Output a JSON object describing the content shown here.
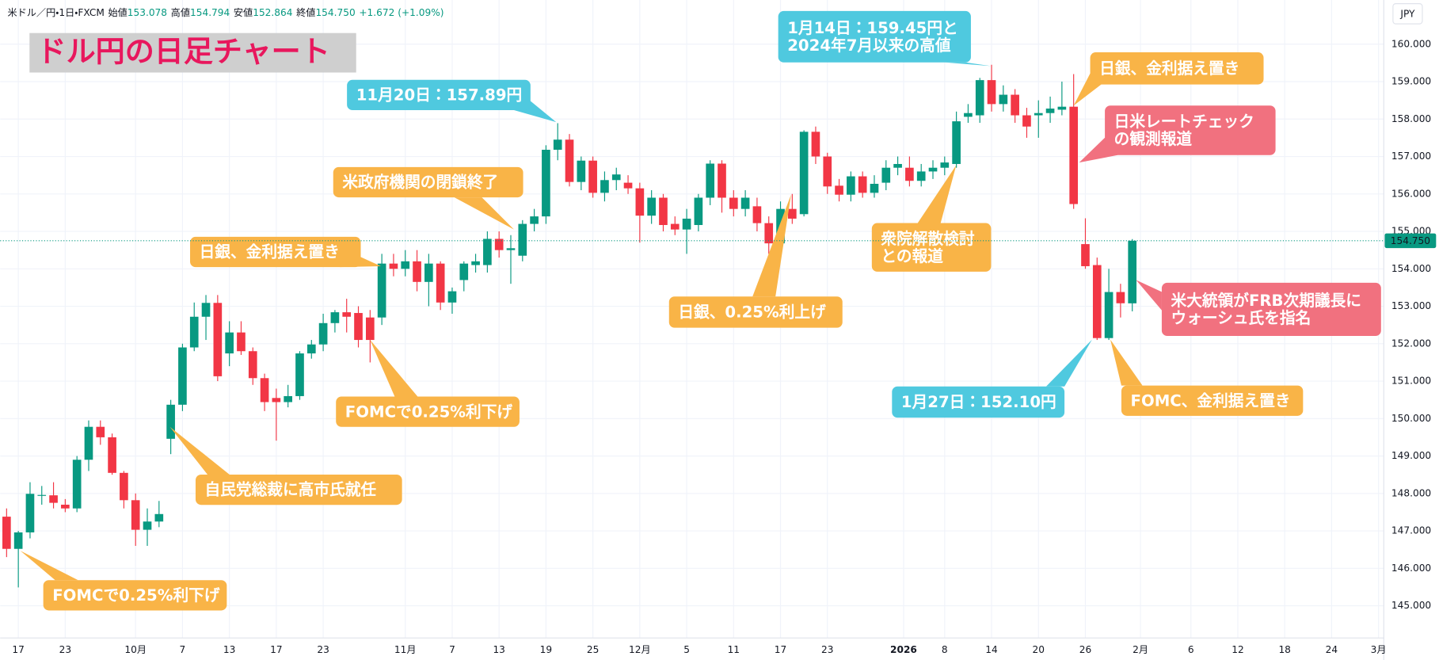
{
  "chart_data": {
    "type": "candlestick",
    "title": "ドル円の日足チャート",
    "currency": "JPY",
    "legend": {
      "symbol": "米ドル／円・1日・FXCM",
      "items": [
        {
          "label": "始値",
          "value": "153.078"
        },
        {
          "label": "高値",
          "value": "154.794"
        },
        {
          "label": "安値",
          "value": "152.864"
        },
        {
          "label": "終値",
          "value": "154.750"
        }
      ],
      "change": "+1.672 (+1.09%)"
    },
    "up_color": "#089981",
    "down_color": "#f23645",
    "open": [
      147.38,
      146.52,
      146.96,
      147.94,
      147.95,
      147.7,
      147.6,
      148.9,
      149.78,
      149.5,
      148.55,
      147.82,
      147.03,
      147.25,
      149.46,
      150.37,
      151.9,
      152.72,
      153.09,
      151.74,
      152.3,
      151.8,
      151.08,
      150.55,
      150.44,
      150.6,
      151.74,
      151.98,
      152.55,
      152.84,
      152.82,
      152.7,
      152.7,
      154.14,
      154.0,
      154.2,
      153.65,
      154.14,
      153.1,
      153.7,
      154.1,
      154.1,
      154.8,
      154.5,
      154.35,
      155.2,
      155.4,
      157.18,
      157.45,
      156.32,
      156.89,
      156.03,
      156.37,
      156.3,
      156.15,
      155.42,
      155.9,
      155.2,
      155.05,
      155.17,
      155.9,
      156.81,
      155.9,
      155.6,
      155.67,
      155.22,
      154.68,
      155.6,
      155.46,
      157.66,
      157.0,
      156.22,
      155.98,
      156.47,
      156.03,
      156.3,
      156.7,
      156.7,
      156.35,
      156.6,
      156.7,
      156.8,
      158.06,
      158.1,
      159.04,
      158.4,
      158.65,
      158.1,
      158.1,
      158.16,
      158.25,
      158.33,
      154.66,
      154.1,
      152.15,
      153.38,
      153.078
    ],
    "high": [
      147.6,
      147.0,
      148.3,
      148.2,
      148.3,
      147.85,
      149.0,
      149.95,
      149.95,
      149.6,
      148.6,
      148.0,
      147.6,
      147.8,
      150.5,
      152.0,
      153.1,
      153.3,
      153.3,
      152.6,
      152.6,
      151.9,
      151.2,
      150.8,
      150.9,
      151.8,
      152.1,
      152.8,
      152.9,
      153.2,
      153.0,
      152.9,
      154.4,
      154.4,
      154.5,
      154.5,
      154.4,
      154.2,
      153.5,
      154.2,
      154.4,
      155.0,
      155.0,
      154.9,
      155.3,
      155.6,
      157.3,
      157.89,
      157.6,
      157.0,
      157.0,
      156.6,
      156.7,
      156.5,
      156.3,
      156.1,
      156.0,
      155.4,
      155.6,
      156.0,
      156.9,
      156.9,
      156.1,
      156.1,
      155.9,
      155.4,
      155.8,
      156.0,
      157.7,
      157.8,
      157.1,
      156.4,
      156.6,
      156.6,
      156.5,
      156.9,
      157.0,
      157.0,
      156.8,
      156.9,
      157.0,
      158.2,
      158.4,
      159.1,
      159.45,
      158.9,
      158.8,
      158.3,
      158.5,
      158.6,
      159.0,
      159.2,
      155.35,
      154.3,
      154.0,
      153.6,
      154.794
    ],
    "low": [
      146.3,
      145.49,
      146.8,
      147.7,
      147.6,
      147.5,
      147.5,
      148.6,
      149.3,
      148.5,
      147.6,
      146.6,
      146.6,
      147.1,
      149.05,
      150.2,
      151.8,
      152.1,
      151.0,
      151.4,
      151.7,
      150.9,
      150.2,
      149.41,
      150.3,
      150.5,
      151.6,
      151.8,
      152.3,
      152.3,
      151.9,
      151.5,
      152.5,
      153.8,
      153.8,
      153.4,
      153.0,
      152.9,
      152.8,
      153.4,
      153.9,
      153.9,
      154.3,
      153.6,
      154.2,
      155.0,
      155.2,
      156.9,
      156.2,
      156.1,
      155.9,
      155.8,
      156.1,
      156.0,
      154.7,
      155.2,
      155.0,
      154.9,
      154.4,
      155.0,
      155.7,
      155.5,
      155.4,
      155.4,
      155.0,
      154.4,
      154.5,
      155.2,
      155.4,
      156.8,
      156.0,
      155.8,
      155.8,
      155.9,
      155.9,
      156.1,
      156.5,
      156.2,
      156.2,
      156.4,
      156.5,
      156.7,
      157.9,
      157.9,
      158.2,
      158.2,
      157.9,
      157.5,
      157.5,
      157.9,
      158.1,
      155.6,
      154.0,
      152.1,
      152.1,
      152.7,
      152.864
    ],
    "close": [
      146.52,
      146.96,
      147.99,
      147.96,
      147.75,
      147.6,
      148.9,
      149.78,
      149.5,
      148.55,
      147.82,
      147.03,
      147.25,
      147.45,
      150.37,
      151.9,
      152.72,
      153.09,
      151.13,
      152.3,
      151.8,
      151.08,
      150.44,
      150.44,
      150.6,
      151.74,
      151.98,
      152.55,
      152.84,
      152.72,
      152.1,
      152.1,
      154.14,
      154.0,
      154.2,
      153.65,
      154.14,
      153.1,
      153.4,
      154.14,
      154.2,
      154.8,
      154.5,
      154.55,
      155.2,
      155.4,
      157.18,
      157.45,
      156.32,
      156.89,
      156.03,
      156.37,
      156.52,
      156.15,
      155.42,
      155.9,
      155.17,
      155.05,
      155.34,
      155.9,
      156.81,
      155.9,
      155.6,
      155.9,
      155.22,
      154.68,
      155.6,
      155.34,
      157.66,
      157.0,
      156.2,
      155.98,
      156.47,
      156.03,
      156.27,
      156.7,
      156.8,
      156.35,
      156.6,
      156.7,
      156.84,
      157.94,
      158.16,
      159.04,
      158.4,
      158.65,
      158.1,
      157.8,
      158.16,
      158.28,
      158.33,
      155.73,
      154.07,
      152.15,
      153.38,
      153.08,
      154.75
    ],
    "xlim": [
      -0.55,
      117.45
    ],
    "xticks": [
      {
        "value": 1,
        "label": "17"
      },
      {
        "value": 5,
        "label": "23"
      },
      {
        "value": 11,
        "label": "10月"
      },
      {
        "value": 15,
        "label": "7"
      },
      {
        "value": 19,
        "label": "13"
      },
      {
        "value": 23,
        "label": "17"
      },
      {
        "value": 27,
        "label": "23"
      },
      {
        "value": 34,
        "label": "11月"
      },
      {
        "value": 38,
        "label": "7"
      },
      {
        "value": 42,
        "label": "13"
      },
      {
        "value": 46,
        "label": "19"
      },
      {
        "value": 50,
        "label": "25"
      },
      {
        "value": 54,
        "label": "12月"
      },
      {
        "value": 58,
        "label": "5"
      },
      {
        "value": 62,
        "label": "11"
      },
      {
        "value": 66,
        "label": "17"
      },
      {
        "value": 70,
        "label": "23"
      },
      {
        "value": 76.5,
        "label": "2026"
      },
      {
        "value": 80,
        "label": "8"
      },
      {
        "value": 84,
        "label": "14"
      },
      {
        "value": 88,
        "label": "20"
      },
      {
        "value": 92,
        "label": "26"
      },
      {
        "value": 96.7,
        "label": "2月"
      },
      {
        "value": 101,
        "label": "6"
      },
      {
        "value": 105,
        "label": "12"
      },
      {
        "value": 109,
        "label": "18"
      },
      {
        "value": 113,
        "label": "24"
      },
      {
        "value": 117,
        "label": "3月"
      }
    ],
    "ylim": [
      144.14,
      161.18
    ],
    "yticks": [
      {
        "value": 145,
        "label": "145.000"
      },
      {
        "value": 146,
        "label": "146.000"
      },
      {
        "value": 147,
        "label": "147.000"
      },
      {
        "value": 148,
        "label": "148.000"
      },
      {
        "value": 149,
        "label": "149.000"
      },
      {
        "value": 150,
        "label": "150.000"
      },
      {
        "value": 151,
        "label": "151.000"
      },
      {
        "value": 152,
        "label": "152.000"
      },
      {
        "value": 153,
        "label": "153.000"
      },
      {
        "value": 154,
        "label": "154.000"
      },
      {
        "value": 155,
        "label": "155.000"
      },
      {
        "value": 156,
        "label": "156.000"
      },
      {
        "value": 157,
        "label": "157.000"
      },
      {
        "value": 158,
        "label": "158.000"
      },
      {
        "value": 159,
        "label": "159.000"
      },
      {
        "value": 160,
        "label": "160.000"
      }
    ],
    "grid": true,
    "last_price": {
      "value": 154.75,
      "label": "154.750"
    },
    "annotations": [
      {
        "text": [
          "FOMCで0.25%利下げ"
        ],
        "color": "#f9b447"
      },
      {
        "text": [
          "自民党総裁に高市氏就任"
        ],
        "color": "#f9b447"
      },
      {
        "text": [
          "日銀、金利据え置き"
        ],
        "color": "#f9b447"
      },
      {
        "text": [
          "FOMCで0.25%利下げ"
        ],
        "color": "#f9b447"
      },
      {
        "text": [
          "米政府機関の閉鎖終了"
        ],
        "color": "#f9b447"
      },
      {
        "text": [
          "11月20日：157.89円"
        ],
        "color": "#4fc9df"
      },
      {
        "text": [
          "日銀、0.25%利上げ"
        ],
        "color": "#f9b447"
      },
      {
        "text": [
          "衆院解散検討",
          "との報道"
        ],
        "color": "#f9b447"
      },
      {
        "text": [
          "1月14日：159.45円と",
          "2024年7月以来の高値"
        ],
        "color": "#4fc9df"
      },
      {
        "text": [
          "日銀、金利据え置き"
        ],
        "color": "#f9b447"
      },
      {
        "text": [
          "日米レートチェック",
          "の観測報道"
        ],
        "color": "#f1717f"
      },
      {
        "text": [
          "米大統領がFRB次期議長に",
          "ウォーシュ氏を指名"
        ],
        "color": "#f1717f"
      },
      {
        "text": [
          "1月27日：152.10円"
        ],
        "color": "#4fc9df"
      },
      {
        "text": [
          "FOMC、金利据え置き"
        ],
        "color": "#f9b447"
      }
    ]
  }
}
